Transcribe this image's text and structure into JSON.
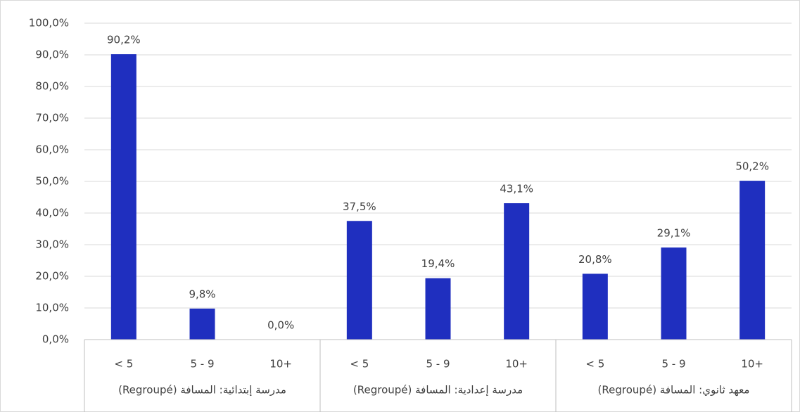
{
  "chart_data": {
    "type": "bar",
    "categories": [
      "< 5",
      "5 - 9",
      "10+",
      "< 5",
      "5 - 9",
      "10+",
      "< 5",
      "5 - 9",
      "10+"
    ],
    "groups": [
      "مدرسة إبتدائية: المسافة (Regroupé)",
      "مدرسة إعدادية: المسافة (Regroupé)",
      "معهد ثانوي: المسافة (Regroupé)"
    ],
    "values": [
      90.2,
      9.8,
      0.0,
      37.5,
      19.4,
      43.1,
      20.8,
      29.1,
      50.2
    ],
    "value_labels": [
      "90,2%",
      "9,8%",
      "0,0%",
      "37,5%",
      "19,4%",
      "43,1%",
      "20,8%",
      "29,1%",
      "50,2%"
    ],
    "color": "#1f2fbf",
    "ylim": [
      0,
      100
    ],
    "yticks": [
      {
        "value": 0,
        "label": "0,0%"
      },
      {
        "value": 10,
        "label": "10,0%"
      },
      {
        "value": 20,
        "label": "20,0%"
      },
      {
        "value": 30,
        "label": "30,0%"
      },
      {
        "value": 40,
        "label": "40,0%"
      },
      {
        "value": 50,
        "label": "50,0%"
      },
      {
        "value": 60,
        "label": "60,0%"
      },
      {
        "value": 70,
        "label": "70,0%"
      },
      {
        "value": 80,
        "label": "80,0%"
      },
      {
        "value": 90,
        "label": "90,0%"
      },
      {
        "value": 100,
        "label": "100,0%"
      }
    ],
    "grid": true
  }
}
